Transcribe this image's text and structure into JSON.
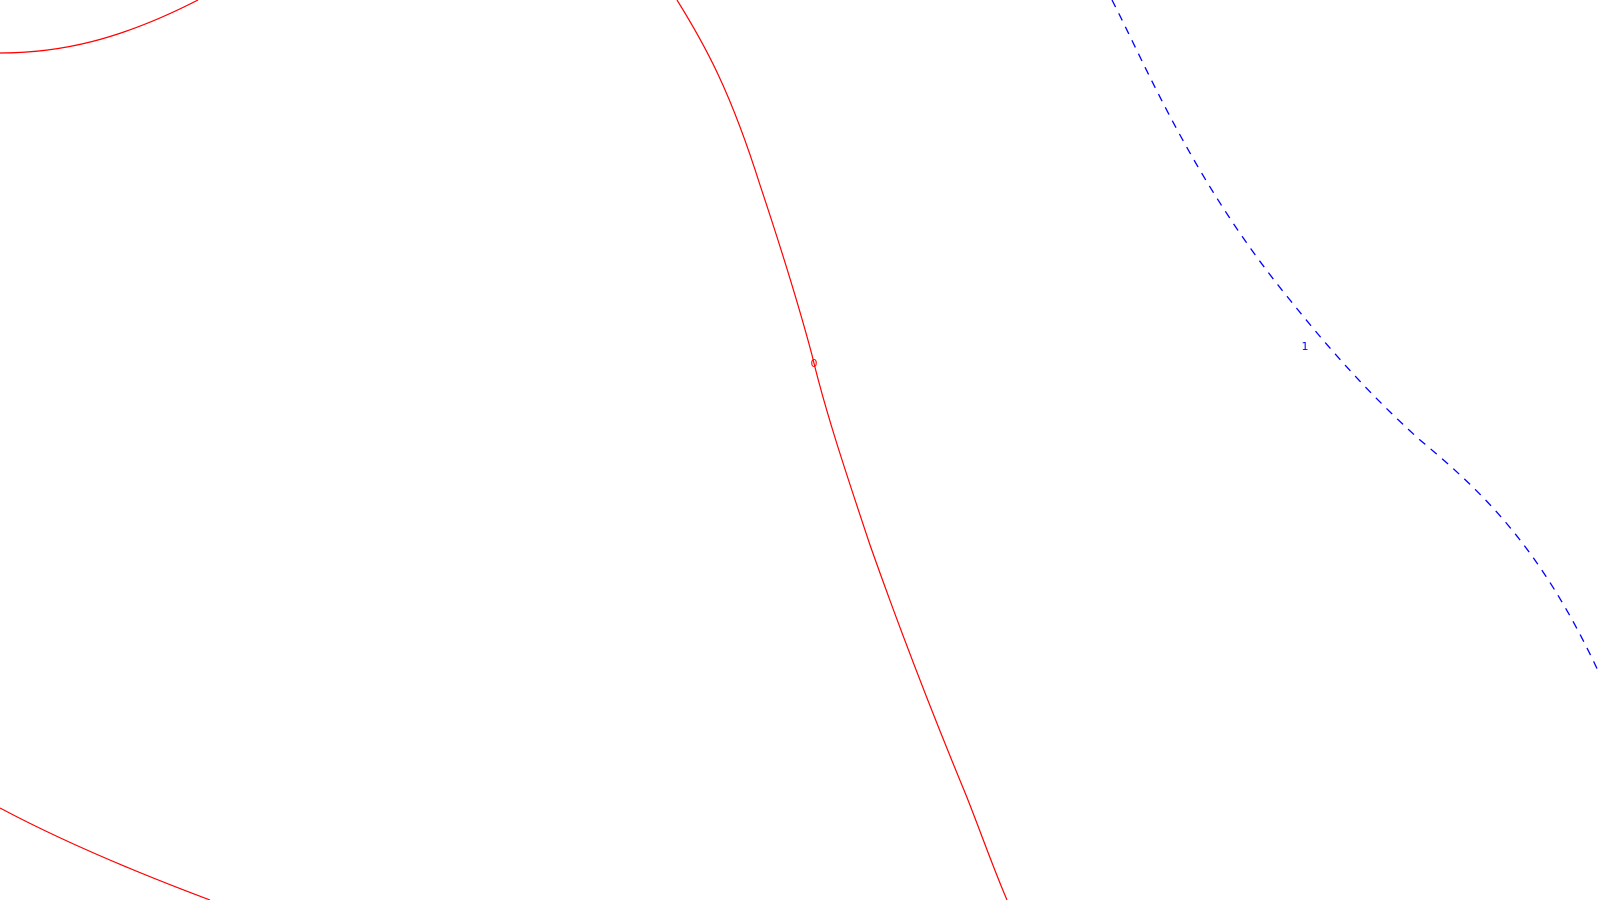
{
  "contours": [
    {
      "id": "contour-0-left-top",
      "level_label": "",
      "color": "#ff0000",
      "style": "solid"
    },
    {
      "id": "contour-0-main",
      "level_label": "0",
      "color": "#ff0000",
      "style": "solid"
    },
    {
      "id": "contour-0-left-bottom",
      "level_label": "",
      "color": "#ff0000",
      "style": "solid"
    },
    {
      "id": "contour-1-right",
      "level_label": "1",
      "color": "#0000ff",
      "style": "dashed"
    }
  ]
}
